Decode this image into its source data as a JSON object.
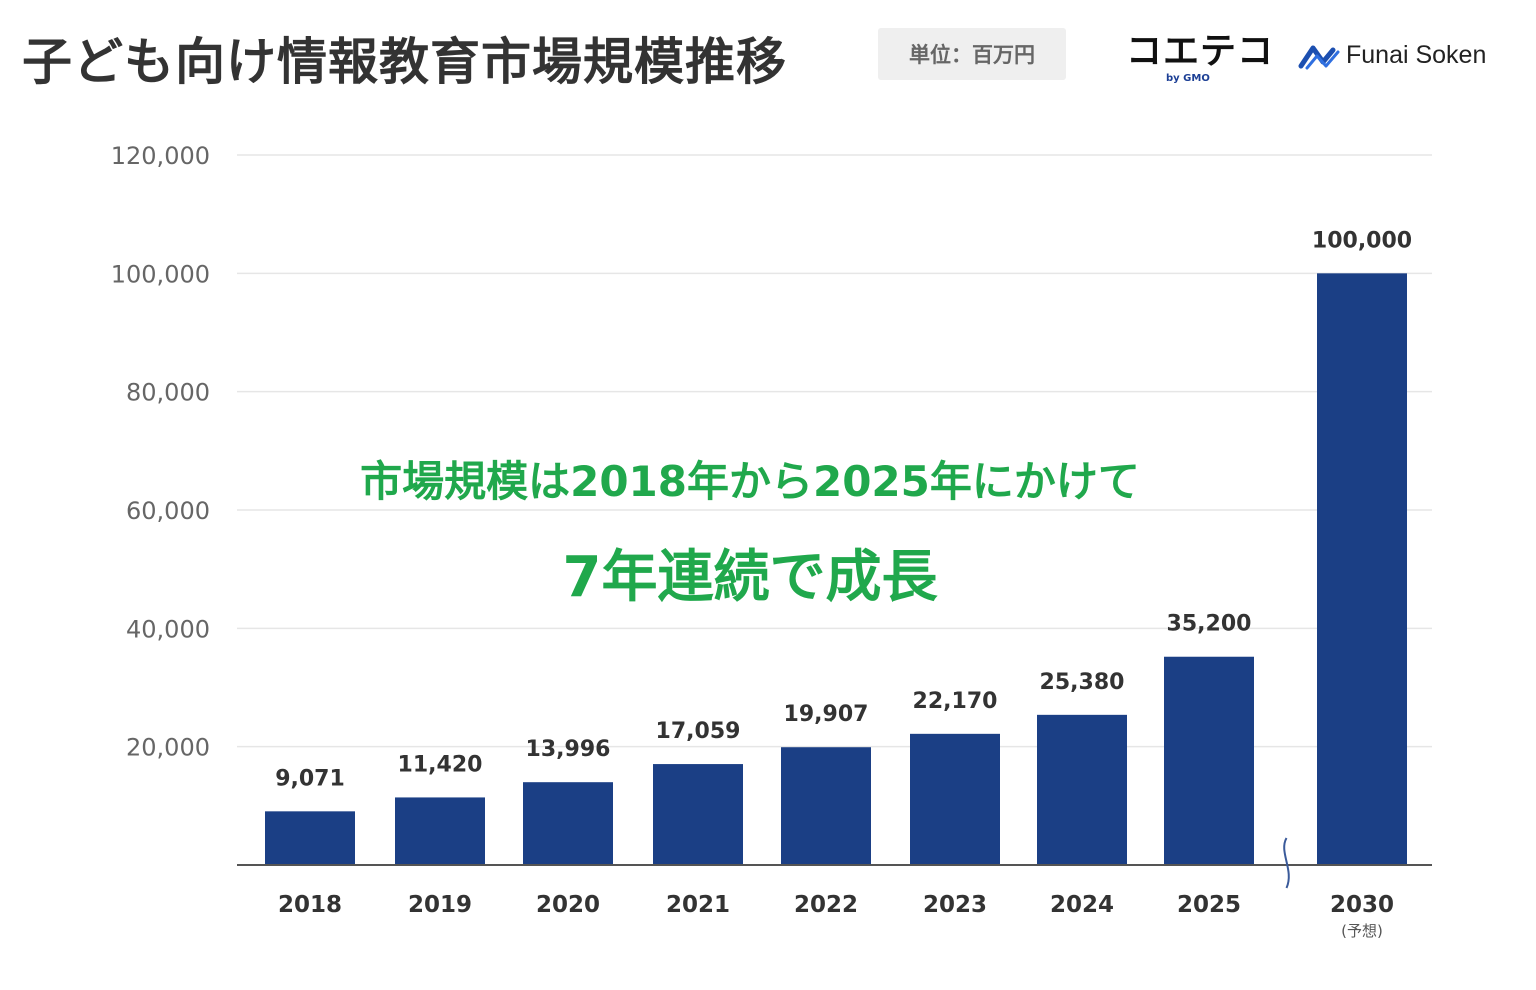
{
  "header": {
    "title": "子ども向け情報教育市場規模推移",
    "unit_label": "単位：百万円",
    "logo_koeteko": "コエテコ",
    "logo_koeteko_sub": "by GMO",
    "logo_funai": "Funai Soken"
  },
  "annotation": {
    "line1": "市場規模は2018年から2025年にかけて",
    "line2": "7年連続で成長"
  },
  "colors": {
    "bar": "#1b3f85",
    "accent_text": "#20a84c",
    "grid": "#e6e6e6",
    "axis": "#555555"
  },
  "chart_data": {
    "type": "bar",
    "categories": [
      "2018",
      "2019",
      "2020",
      "2021",
      "2022",
      "2023",
      "2024",
      "2025",
      "2030"
    ],
    "category_notes": [
      "",
      "",
      "",
      "",
      "",
      "",
      "",
      "",
      "(予想)"
    ],
    "values": [
      9071,
      11420,
      13996,
      17059,
      19907,
      22170,
      25380,
      35200,
      100000
    ],
    "value_labels": [
      "9,071",
      "11,420",
      "13,996",
      "17,059",
      "19,907",
      "22,170",
      "25,380",
      "35,200",
      "100,000"
    ],
    "ylim": [
      0,
      120000
    ],
    "yticks": [
      20000,
      40000,
      60000,
      80000,
      100000,
      120000
    ],
    "ytick_labels": [
      "20,000",
      "40,000",
      "60,000",
      "80,000",
      "100,000",
      "120,000"
    ],
    "axis_break_between": [
      "2025",
      "2030"
    ],
    "grid": true,
    "xlabel": "",
    "ylabel": ""
  }
}
